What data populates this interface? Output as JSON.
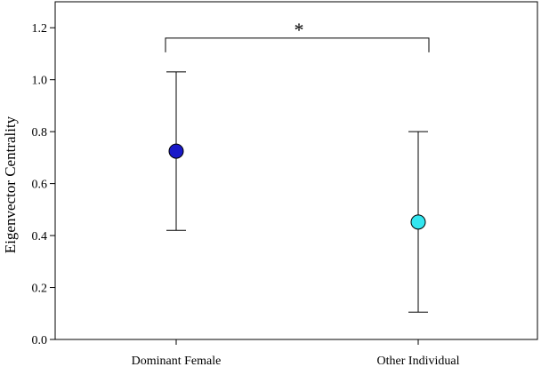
{
  "chart_data": {
    "type": "scatter",
    "ylabel": "Eigenvector Centrality",
    "xlabel": "",
    "ylim": [
      0,
      1.3
    ],
    "yticks": [
      0.0,
      0.2,
      0.4,
      0.6,
      0.8,
      1.0,
      1.2
    ],
    "ytick_labels": [
      "0.0",
      "0.2",
      "0.4",
      "0.6",
      "0.8",
      "1.0",
      "1.2"
    ],
    "grid": false,
    "categories": [
      "Dominant Female",
      "Other Individual"
    ],
    "points": [
      {
        "category": "Dominant Female",
        "mean": 0.725,
        "lower": 0.42,
        "upper": 1.03,
        "color": "#1919c8"
      },
      {
        "category": "Other Individual",
        "mean": 0.452,
        "lower": 0.105,
        "upper": 0.8,
        "color": "#33e6f0"
      }
    ],
    "annotations": [
      {
        "type": "significance-bracket",
        "between": [
          "Dominant Female",
          "Other Individual"
        ],
        "label": "*",
        "y": 1.16
      }
    ]
  }
}
